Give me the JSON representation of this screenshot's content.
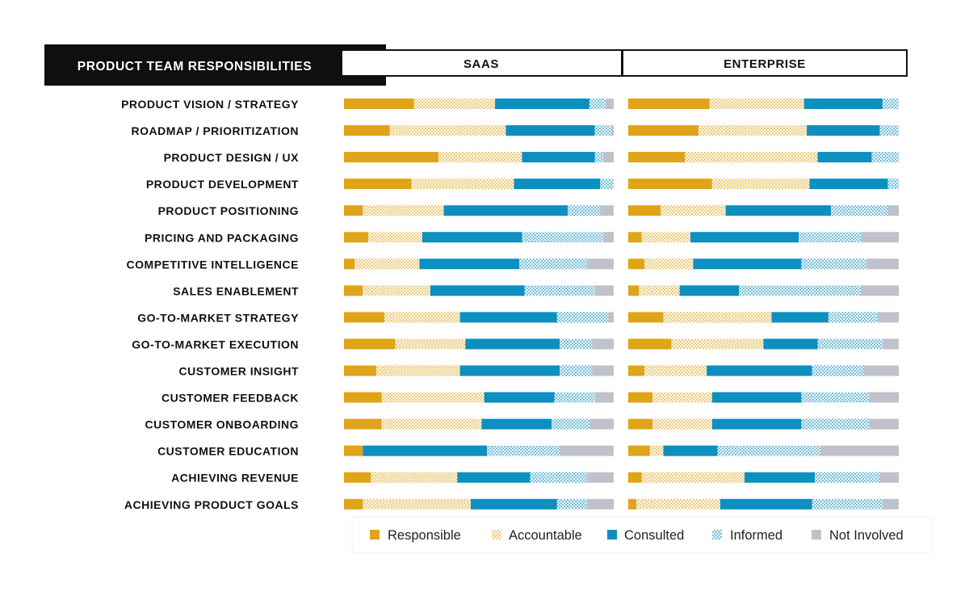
{
  "chart_data": {
    "type": "bar",
    "stacked": true,
    "orientation": "horizontal",
    "title": "PRODUCT TEAM RESPONSIBILITIES",
    "value_unit": "percent of respondents",
    "xlim": [
      0,
      100
    ],
    "grid": false,
    "legend_position": "bottom-right",
    "categories": [
      "PRODUCT VISION / STRATEGY",
      "ROADMAP / PRIORITIZATION",
      "PRODUCT DESIGN / UX",
      "PRODUCT DEVELOPMENT",
      "PRODUCT POSITIONING",
      "PRICING AND PACKAGING",
      "COMPETITIVE INTELLIGENCE",
      "SALES ENABLEMENT",
      "GO-TO-MARKET STRATEGY",
      "GO-TO-MARKET EXECUTION",
      "CUSTOMER INSIGHT",
      "CUSTOMER FEEDBACK",
      "CUSTOMER ONBOARDING",
      "CUSTOMER EDUCATION",
      "ACHIEVING REVENUE",
      "ACHIEVING PRODUCT GOALS"
    ],
    "series_names": [
      "Responsible",
      "Accountable",
      "Consulted",
      "Informed",
      "Not Involved"
    ],
    "series_styles": [
      "solid",
      "dotted",
      "solid",
      "dotted",
      "solid"
    ],
    "colors": {
      "Responsible": "#e0a418",
      "Accountable": "#e0a418",
      "Consulted": "#0d8fc0",
      "Informed": "#0d8fc0",
      "Not Involved": "#c0c2cb"
    },
    "panels": [
      {
        "name": "SAAS",
        "values": [
          [
            26,
            30,
            35,
            6,
            3
          ],
          [
            17,
            43,
            33,
            6,
            1
          ],
          [
            35,
            31,
            27,
            3,
            4
          ],
          [
            25,
            38,
            32,
            5,
            0
          ],
          [
            7,
            30,
            46,
            12,
            5
          ],
          [
            9,
            20,
            37,
            30,
            4
          ],
          [
            4,
            24,
            37,
            25,
            10
          ],
          [
            7,
            25,
            35,
            26,
            7
          ],
          [
            15,
            28,
            36,
            19,
            2
          ],
          [
            19,
            26,
            35,
            12,
            8
          ],
          [
            12,
            31,
            37,
            12,
            8
          ],
          [
            14,
            38,
            26,
            15,
            7
          ],
          [
            14,
            37,
            26,
            14,
            9
          ],
          [
            7,
            0,
            46,
            27,
            20
          ],
          [
            10,
            32,
            27,
            21,
            10
          ],
          [
            7,
            40,
            32,
            11,
            10
          ]
        ]
      },
      {
        "name": "ENTERPRISE",
        "values": [
          [
            30,
            35,
            29,
            6,
            0
          ],
          [
            26,
            40,
            27,
            7,
            0
          ],
          [
            21,
            49,
            20,
            10,
            0
          ],
          [
            31,
            36,
            29,
            4,
            0
          ],
          [
            12,
            24,
            39,
            21,
            4
          ],
          [
            5,
            18,
            40,
            23,
            14
          ],
          [
            6,
            18,
            40,
            24,
            12
          ],
          [
            4,
            15,
            22,
            45,
            14
          ],
          [
            13,
            40,
            21,
            18,
            8
          ],
          [
            16,
            34,
            20,
            24,
            6
          ],
          [
            6,
            23,
            39,
            19,
            13
          ],
          [
            9,
            22,
            33,
            25,
            11
          ],
          [
            9,
            22,
            33,
            25,
            11
          ],
          [
            8,
            5,
            20,
            38,
            29
          ],
          [
            5,
            38,
            26,
            24,
            7
          ],
          [
            3,
            31,
            34,
            26,
            6
          ]
        ]
      }
    ]
  }
}
